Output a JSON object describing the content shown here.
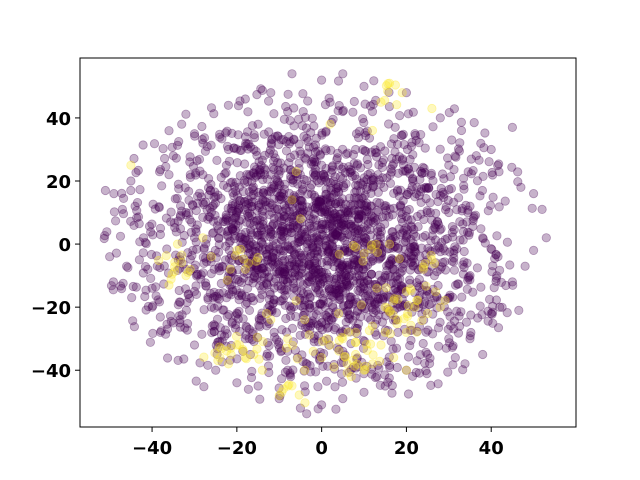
{
  "chart_data": {
    "type": "scatter",
    "title": "",
    "xlabel": "",
    "ylabel": "",
    "xlim": [
      -57,
      60
    ],
    "ylim": [
      -58,
      59
    ],
    "x_ticks": [
      -40,
      -20,
      0,
      20,
      40
    ],
    "y_ticks": [
      -40,
      -20,
      0,
      20,
      40
    ],
    "x_tick_labels": [
      "−40",
      "−20",
      "0",
      "20",
      "40"
    ],
    "y_tick_labels": [
      "−40",
      "−20",
      "0",
      "20",
      "40"
    ],
    "grid": false,
    "legend": "none",
    "colors": {
      "class_0": "#440154",
      "class_1": "#fde725"
    },
    "marker_alpha": 0.3,
    "point_cloud": {
      "class_0": {
        "description": "dense roughly elliptical cloud",
        "x_range": [
          -52,
          53
        ],
        "y_range": [
          -52,
          54
        ],
        "approx_count": 2400
      },
      "class_1": {
        "description": "scattered clusters mostly in lower half",
        "approx_count": 160
      }
    },
    "series": [
      {
        "values": [
          [
            -51,
            17
          ],
          [
            -49,
            16
          ],
          [
            -50,
            -4
          ],
          [
            -47,
            11
          ],
          [
            -45,
            20
          ],
          [
            -44,
            12
          ],
          [
            -43,
            -5
          ],
          [
            -42,
            2
          ],
          [
            -46,
            -7
          ],
          [
            -41,
            -8
          ],
          [
            -40,
            -20
          ],
          [
            -38,
            -28
          ],
          [
            -36,
            22
          ],
          [
            -35,
            28
          ],
          [
            -33,
            38
          ],
          [
            -30,
            35
          ],
          [
            -28,
            32
          ],
          [
            -22,
            44
          ],
          [
            -18,
            46
          ],
          [
            -12,
            48
          ],
          [
            -7,
            54
          ],
          [
            0,
            52
          ],
          [
            5,
            54
          ],
          [
            10,
            50
          ],
          [
            20,
            48
          ],
          [
            28,
            40
          ],
          [
            33,
            36
          ],
          [
            40,
            30
          ],
          [
            45,
            37
          ],
          [
            47,
            18
          ],
          [
            50,
            16
          ],
          [
            52,
            11
          ],
          [
            53,
            2
          ],
          [
            50,
            -2
          ],
          [
            48,
            -7
          ],
          [
            45,
            -12
          ],
          [
            42,
            -20
          ],
          [
            40,
            -22
          ],
          [
            38,
            -35
          ],
          [
            35,
            -30
          ],
          [
            30,
            -30
          ],
          [
            25,
            -35
          ],
          [
            20,
            -40
          ],
          [
            15,
            -45
          ],
          [
            10,
            -47
          ],
          [
            5,
            -49
          ],
          [
            0,
            -51
          ],
          [
            -5,
            -52
          ],
          [
            -10,
            -49
          ],
          [
            -15,
            -45
          ],
          [
            -20,
            -44
          ],
          [
            -25,
            -40
          ],
          [
            -30,
            -32
          ],
          [
            -35,
            -25
          ],
          [
            -40,
            -14
          ],
          [
            -32,
            10
          ],
          [
            -28,
            22
          ],
          [
            -22,
            30
          ],
          [
            -15,
            38
          ],
          [
            -8,
            42
          ],
          [
            2,
            45
          ],
          [
            12,
            42
          ],
          [
            22,
            35
          ],
          [
            30,
            25
          ],
          [
            35,
            12
          ],
          [
            38,
            2
          ],
          [
            35,
            -10
          ],
          [
            28,
            -18
          ],
          [
            18,
            -28
          ],
          [
            5,
            -34
          ],
          [
            -8,
            -34
          ],
          [
            -18,
            -30
          ],
          [
            -26,
            -20
          ],
          [
            -32,
            -8
          ],
          [
            -30,
            2
          ],
          [
            -20,
            10
          ],
          [
            -10,
            15
          ],
          [
            0,
            12
          ],
          [
            10,
            8
          ],
          [
            20,
            2
          ],
          [
            15,
            -10
          ],
          [
            5,
            -15
          ],
          [
            -5,
            -12
          ],
          [
            -15,
            -5
          ],
          [
            -8,
            5
          ],
          [
            2,
            0
          ],
          [
            8,
            -5
          ],
          [
            -2,
            -8
          ],
          [
            12,
            18
          ],
          [
            -12,
            22
          ],
          [
            22,
            15
          ],
          [
            -22,
            -12
          ],
          [
            18,
            -15
          ],
          [
            -18,
            2
          ],
          [
            0,
            25
          ],
          [
            0,
            -25
          ],
          [
            25,
            -5
          ],
          [
            -25,
            15
          ],
          [
            30,
            10
          ],
          [
            -30,
            -15
          ],
          [
            8,
            30
          ],
          [
            -8,
            -40
          ],
          [
            28,
            -8
          ],
          [
            -38,
            5
          ]
        ]
      },
      {
        "values": [
          [
            -45,
            25
          ],
          [
            -34,
            0
          ],
          [
            -32,
            -10
          ],
          [
            -31,
            -8
          ],
          [
            -36,
            -13
          ],
          [
            -20,
            -2
          ],
          [
            -18,
            -8
          ],
          [
            -13,
            -22
          ],
          [
            -6,
            23
          ],
          [
            -8,
            -30
          ],
          [
            -5,
            8
          ],
          [
            -4,
            -40
          ],
          [
            -10,
            -48
          ],
          [
            -8,
            -45
          ],
          [
            -20,
            -32
          ],
          [
            -18,
            -36
          ],
          [
            -16,
            -35
          ],
          [
            -24,
            -36
          ],
          [
            -22,
            -38
          ],
          [
            -14,
            -40
          ],
          [
            -2,
            -34
          ],
          [
            0,
            -36
          ],
          [
            2,
            -32
          ],
          [
            5,
            -30
          ],
          [
            6,
            -38
          ],
          [
            8,
            -35
          ],
          [
            10,
            -40
          ],
          [
            12,
            -38
          ],
          [
            14,
            -32
          ],
          [
            7,
            -42
          ],
          [
            17,
            -36
          ],
          [
            20,
            -40
          ],
          [
            15,
            -20
          ],
          [
            17,
            -18
          ],
          [
            20,
            -15
          ],
          [
            22,
            -20
          ],
          [
            25,
            -22
          ],
          [
            13,
            -14
          ],
          [
            12,
            -26
          ],
          [
            15,
            -28
          ],
          [
            18,
            -24
          ],
          [
            24,
            -8
          ],
          [
            26,
            -5
          ],
          [
            28,
            -20
          ],
          [
            8,
            -1
          ],
          [
            10,
            -3
          ],
          [
            16,
            0
          ],
          [
            -7,
            14
          ],
          [
            16,
            51
          ],
          [
            19,
            48
          ],
          [
            14,
            45
          ],
          [
            12,
            36
          ],
          [
            26,
            43
          ],
          [
            2,
            38
          ],
          [
            -6,
            -18
          ],
          [
            4,
            -22
          ],
          [
            8,
            -28
          ],
          [
            20,
            -28
          ],
          [
            -26,
            -4
          ],
          [
            -28,
            2
          ],
          [
            -12,
            -24
          ],
          [
            -4,
            -24
          ]
        ]
      }
    ]
  }
}
